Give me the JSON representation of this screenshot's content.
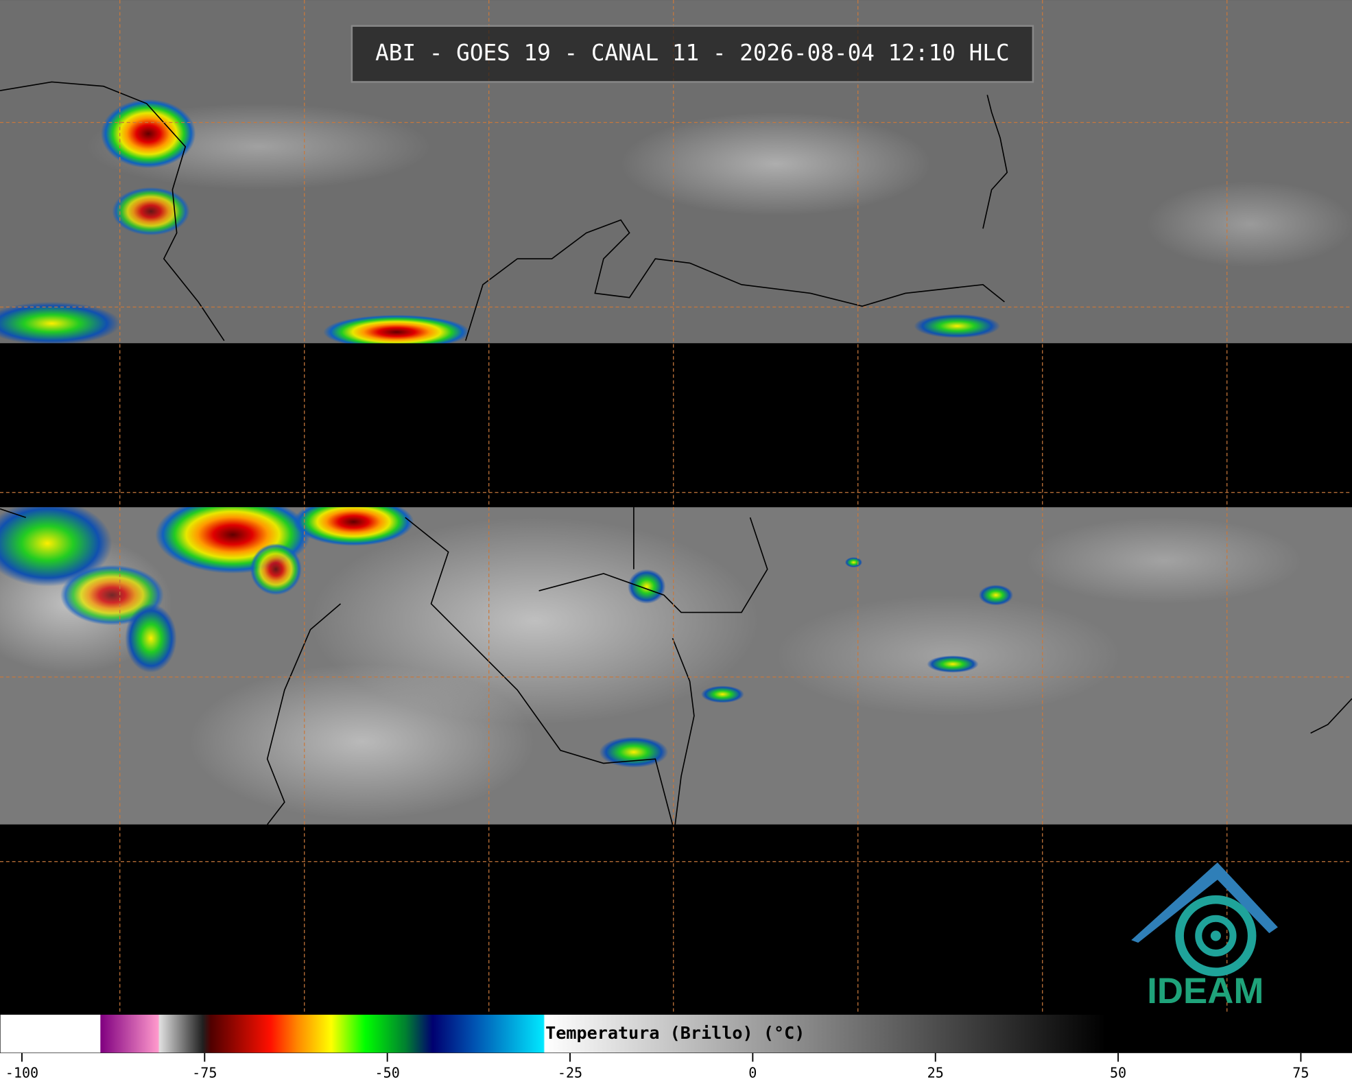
{
  "title": "ABI - GOES 19 - CANAL 11 - 2026-08-04 12:10 HLC",
  "colorbar": {
    "label": "Temperatura (Brillo) (°C)",
    "range": [
      -103,
      82
    ],
    "ticks": [
      -100,
      -75,
      -50,
      -25,
      0,
      25,
      50,
      75
    ]
  },
  "logo": {
    "text": "IDEAM"
  }
}
